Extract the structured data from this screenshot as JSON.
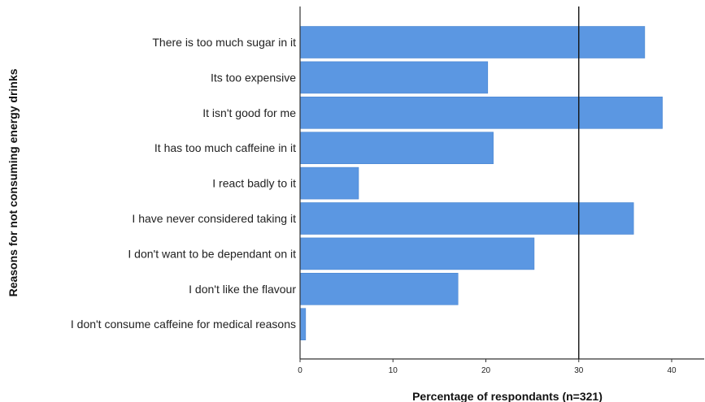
{
  "chart_data": {
    "type": "bar",
    "orientation": "horizontal",
    "categories": [
      "There is too much sugar in it",
      "Its too expensive",
      "It isn't good for me",
      "It has too much caffeine in it",
      "I react badly to it",
      "I have never considered taking it",
      "I don't want to be dependant on it",
      "I don't like the flavour",
      "I don't consume caffeine for medical reasons"
    ],
    "values": [
      37.1,
      20.2,
      39.0,
      20.8,
      6.3,
      35.9,
      25.2,
      17.0,
      0.6
    ],
    "xlabel": "Percentage of respondants (n=321)",
    "ylabel": "Reasons for not consuming energy drinks",
    "xlim": [
      0,
      43.5
    ],
    "xticks": [
      0,
      10,
      20,
      30,
      40
    ],
    "reference_line": 30,
    "grid": false,
    "bar_color": "#5b97e2",
    "bar_edge_color": "#4a86d0",
    "axis_color": "#333333",
    "reference_line_color": "#111111"
  }
}
